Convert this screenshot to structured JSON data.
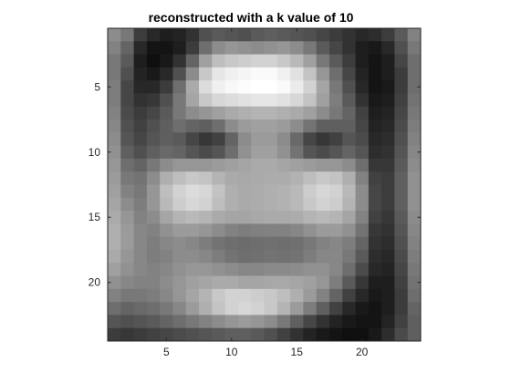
{
  "chart_data": {
    "type": "heatmap",
    "title": "reconstructed with a k value of 10",
    "xlabel": "",
    "ylabel": "",
    "colormap": "gray",
    "x_ticks": [
      5,
      10,
      15,
      20
    ],
    "y_ticks": [
      5,
      10,
      15,
      20
    ],
    "xlim": [
      0.5,
      24.5
    ],
    "ylim": [
      0.5,
      24.5
    ],
    "y_direction": "reverse",
    "value_range": [
      0,
      255
    ],
    "rows": [
      [
        140,
        120,
        60,
        40,
        30,
        35,
        50,
        80,
        90,
        85,
        80,
        90,
        95,
        90,
        85,
        80,
        70,
        60,
        50,
        40,
        45,
        60,
        90,
        130
      ],
      [
        130,
        100,
        40,
        20,
        20,
        30,
        60,
        110,
        140,
        150,
        145,
        140,
        145,
        150,
        140,
        120,
        90,
        70,
        50,
        30,
        25,
        40,
        80,
        120
      ],
      [
        120,
        90,
        30,
        15,
        25,
        50,
        100,
        160,
        190,
        200,
        205,
        210,
        210,
        200,
        185,
        160,
        120,
        90,
        60,
        30,
        20,
        30,
        70,
        110
      ],
      [
        120,
        80,
        35,
        25,
        40,
        80,
        140,
        200,
        230,
        240,
        245,
        250,
        250,
        240,
        225,
        195,
        150,
        110,
        70,
        35,
        20,
        30,
        60,
        110
      ],
      [
        125,
        70,
        40,
        40,
        60,
        110,
        170,
        220,
        240,
        248,
        252,
        255,
        255,
        250,
        235,
        210,
        165,
        120,
        80,
        40,
        20,
        25,
        60,
        110
      ],
      [
        125,
        70,
        50,
        55,
        80,
        120,
        165,
        200,
        215,
        220,
        225,
        230,
        230,
        225,
        215,
        195,
        160,
        125,
        90,
        50,
        25,
        30,
        65,
        115
      ],
      [
        130,
        75,
        60,
        70,
        90,
        120,
        140,
        150,
        160,
        170,
        175,
        180,
        180,
        175,
        170,
        160,
        140,
        120,
        100,
        65,
        30,
        35,
        70,
        120
      ],
      [
        135,
        80,
        65,
        80,
        95,
        110,
        100,
        95,
        110,
        140,
        155,
        160,
        160,
        155,
        140,
        115,
        95,
        95,
        95,
        70,
        35,
        40,
        75,
        125
      ],
      [
        140,
        85,
        70,
        85,
        95,
        90,
        70,
        55,
        65,
        100,
        140,
        155,
        155,
        140,
        105,
        70,
        55,
        65,
        85,
        75,
        40,
        45,
        80,
        130
      ],
      [
        145,
        95,
        80,
        95,
        105,
        100,
        85,
        75,
        85,
        110,
        145,
        160,
        160,
        145,
        115,
        85,
        75,
        85,
        100,
        85,
        45,
        50,
        85,
        135
      ],
      [
        150,
        110,
        100,
        120,
        140,
        150,
        150,
        150,
        155,
        160,
        165,
        170,
        170,
        165,
        160,
        155,
        150,
        150,
        140,
        110,
        55,
        55,
        90,
        140
      ],
      [
        155,
        120,
        115,
        140,
        175,
        190,
        200,
        195,
        180,
        170,
        168,
        170,
        172,
        172,
        178,
        190,
        200,
        195,
        175,
        130,
        65,
        60,
        95,
        145
      ],
      [
        160,
        130,
        120,
        150,
        190,
        210,
        220,
        215,
        195,
        175,
        170,
        172,
        175,
        178,
        185,
        205,
        215,
        210,
        185,
        140,
        70,
        60,
        95,
        145
      ],
      [
        165,
        140,
        125,
        150,
        185,
        205,
        215,
        210,
        190,
        175,
        170,
        172,
        175,
        178,
        185,
        200,
        210,
        205,
        180,
        140,
        70,
        60,
        95,
        145
      ],
      [
        170,
        150,
        130,
        140,
        165,
        180,
        185,
        180,
        170,
        165,
        165,
        168,
        170,
        170,
        172,
        180,
        185,
        180,
        165,
        130,
        65,
        55,
        90,
        140
      ],
      [
        175,
        155,
        135,
        130,
        145,
        155,
        155,
        150,
        140,
        130,
        125,
        128,
        130,
        130,
        135,
        145,
        155,
        155,
        145,
        115,
        55,
        50,
        85,
        135
      ],
      [
        175,
        155,
        135,
        125,
        135,
        140,
        135,
        125,
        115,
        110,
        108,
        110,
        112,
        110,
        112,
        120,
        130,
        135,
        125,
        100,
        50,
        45,
        80,
        130
      ],
      [
        170,
        150,
        135,
        125,
        130,
        140,
        140,
        135,
        125,
        115,
        110,
        112,
        115,
        113,
        115,
        125,
        135,
        135,
        120,
        90,
        45,
        40,
        75,
        125
      ],
      [
        160,
        145,
        135,
        130,
        135,
        145,
        150,
        150,
        145,
        140,
        135,
        135,
        138,
        138,
        140,
        145,
        145,
        135,
        110,
        75,
        40,
        35,
        70,
        120
      ],
      [
        145,
        135,
        130,
        130,
        140,
        150,
        160,
        165,
        170,
        170,
        165,
        165,
        168,
        168,
        165,
        160,
        150,
        125,
        90,
        55,
        30,
        30,
        65,
        115
      ],
      [
        130,
        120,
        120,
        125,
        135,
        150,
        165,
        180,
        200,
        210,
        210,
        205,
        200,
        190,
        175,
        155,
        130,
        100,
        65,
        40,
        25,
        30,
        60,
        110
      ],
      [
        110,
        100,
        105,
        110,
        120,
        135,
        155,
        175,
        195,
        210,
        215,
        210,
        200,
        180,
        155,
        125,
        95,
        65,
        40,
        25,
        20,
        30,
        60,
        100
      ],
      [
        85,
        80,
        85,
        90,
        100,
        110,
        120,
        130,
        140,
        150,
        155,
        150,
        140,
        120,
        95,
        70,
        50,
        35,
        25,
        20,
        20,
        35,
        65,
        95
      ],
      [
        60,
        55,
        60,
        65,
        70,
        75,
        80,
        85,
        90,
        95,
        95,
        90,
        80,
        65,
        50,
        35,
        25,
        20,
        15,
        15,
        25,
        45,
        75,
        95
      ]
    ]
  }
}
